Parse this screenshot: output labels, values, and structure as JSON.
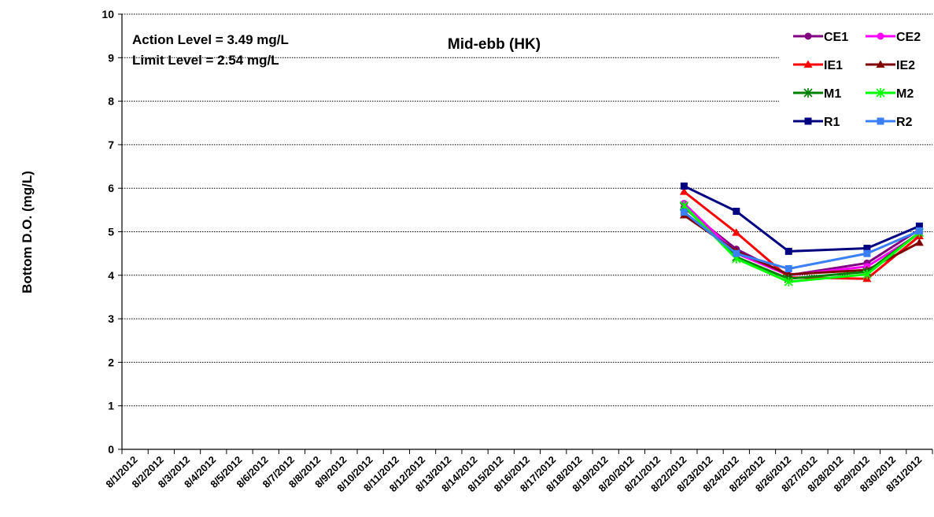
{
  "chart_data": {
    "type": "line",
    "title": "Mid-ebb (HK)",
    "ylabel": "Bottom  D.O. (mg/L)",
    "xlabel": "",
    "ylim": [
      0,
      10
    ],
    "y_ticks": [
      0,
      1,
      2,
      3,
      4,
      5,
      6,
      7,
      8,
      9,
      10
    ],
    "grid": "horizontal",
    "legend_position": "top-right",
    "annotations": [
      "Action Level = 3.49 mg/L",
      "Limit Level = 2.54 mg/L"
    ],
    "categories": [
      "8/1/2012",
      "8/2/2012",
      "8/3/2012",
      "8/4/2012",
      "8/5/2012",
      "8/6/2012",
      "8/7/2012",
      "8/8/2012",
      "8/9/2012",
      "8/10/2012",
      "8/11/2012",
      "8/12/2012",
      "8/13/2012",
      "8/14/2012",
      "8/15/2012",
      "8/16/2012",
      "8/17/2012",
      "8/18/2012",
      "8/19/2012",
      "8/20/2012",
      "8/21/2012",
      "8/22/2012",
      "8/23/2012",
      "8/24/2012",
      "8/25/2012",
      "8/26/2012",
      "8/27/2012",
      "8/28/2012",
      "8/29/2012",
      "8/30/2012",
      "8/31/2012"
    ],
    "series": [
      {
        "name": "CE1",
        "color": "#800080",
        "marker": "circle",
        "points": [
          [
            "8/22/2012",
            5.55
          ],
          [
            "8/24/2012",
            4.6
          ],
          [
            "8/26/2012",
            4.0
          ],
          [
            "8/29/2012",
            4.28
          ],
          [
            "8/31/2012",
            5.05
          ]
        ]
      },
      {
        "name": "CE2",
        "color": "#ff00ff",
        "marker": "circle",
        "points": [
          [
            "8/22/2012",
            5.65
          ],
          [
            "8/24/2012",
            4.5
          ],
          [
            "8/26/2012",
            4.0
          ],
          [
            "8/29/2012",
            4.2
          ],
          [
            "8/31/2012",
            4.95
          ]
        ]
      },
      {
        "name": "IE1",
        "color": "#ff0000",
        "marker": "triangle",
        "points": [
          [
            "8/22/2012",
            5.92
          ],
          [
            "8/24/2012",
            4.98
          ],
          [
            "8/26/2012",
            3.95
          ],
          [
            "8/29/2012",
            3.92
          ],
          [
            "8/31/2012",
            4.9
          ]
        ]
      },
      {
        "name": "IE2",
        "color": "#800000",
        "marker": "triangle",
        "points": [
          [
            "8/22/2012",
            5.38
          ],
          [
            "8/24/2012",
            4.55
          ],
          [
            "8/26/2012",
            4.02
          ],
          [
            "8/29/2012",
            4.12
          ],
          [
            "8/31/2012",
            4.75
          ]
        ]
      },
      {
        "name": "M1",
        "color": "#008000",
        "marker": "star",
        "points": [
          [
            "8/22/2012",
            5.58
          ],
          [
            "8/24/2012",
            4.42
          ],
          [
            "8/26/2012",
            3.92
          ],
          [
            "8/29/2012",
            4.08
          ],
          [
            "8/31/2012",
            4.98
          ]
        ]
      },
      {
        "name": "M2",
        "color": "#00ff00",
        "marker": "star",
        "points": [
          [
            "8/22/2012",
            5.6
          ],
          [
            "8/24/2012",
            4.38
          ],
          [
            "8/26/2012",
            3.85
          ],
          [
            "8/29/2012",
            4.02
          ],
          [
            "8/31/2012",
            4.98
          ]
        ]
      },
      {
        "name": "R1",
        "color": "#000080",
        "marker": "square",
        "points": [
          [
            "8/22/2012",
            6.05
          ],
          [
            "8/24/2012",
            5.47
          ],
          [
            "8/26/2012",
            4.55
          ],
          [
            "8/29/2012",
            4.62
          ],
          [
            "8/31/2012",
            5.13
          ]
        ]
      },
      {
        "name": "R2",
        "color": "#3a7ff5",
        "marker": "square",
        "points": [
          [
            "8/22/2012",
            5.45
          ],
          [
            "8/24/2012",
            4.5
          ],
          [
            "8/26/2012",
            4.15
          ],
          [
            "8/29/2012",
            4.5
          ],
          [
            "8/31/2012",
            5.02
          ]
        ]
      }
    ]
  }
}
